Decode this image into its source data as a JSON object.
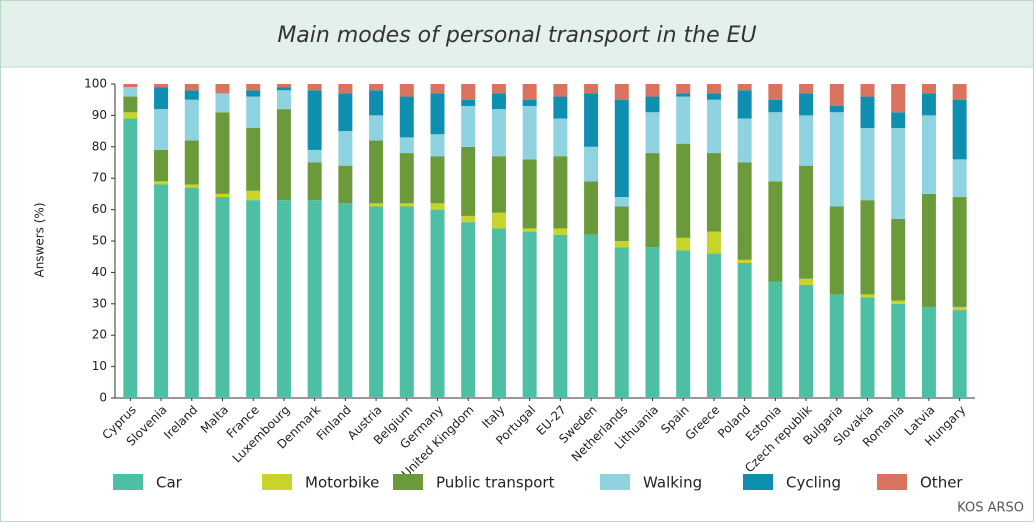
{
  "chart_data": {
    "type": "stacked_bar",
    "title": "Main modes of personal transport in the EU",
    "ylabel": "Answers (%)",
    "credit": "KOS ARSO",
    "categories": [
      "Cyprus",
      "Slovenia",
      "Ireland",
      "Malta",
      "France",
      "Luxembourg",
      "Denmark",
      "Finland",
      "Austria",
      "Belgium",
      "Germany",
      "United Kingdom",
      "Italy",
      "Portugal",
      "EU-27",
      "Sweden",
      "Netherlands",
      "Lithuania",
      "Spain",
      "Greece",
      "Poland",
      "Estonia",
      "Czech republik",
      "Bulgaria",
      "Slovakia",
      "Romania",
      "Latvia",
      "Hungary"
    ],
    "series": [
      {
        "name": "Car",
        "color": "#4dbfa4",
        "values": [
          89,
          68,
          67,
          64,
          63,
          63,
          63,
          62,
          61,
          61,
          60,
          56,
          54,
          53,
          52,
          52,
          48,
          48,
          47,
          46,
          43,
          37,
          36,
          33,
          32,
          30,
          29,
          28
        ]
      },
      {
        "name": "Motorbike",
        "color": "#c8d42a",
        "values": [
          2,
          1,
          1,
          1,
          3,
          0,
          0,
          0,
          1,
          1,
          2,
          2,
          5,
          1,
          2,
          0,
          2,
          0,
          4,
          7,
          1,
          0,
          2,
          0,
          1,
          1,
          0,
          1
        ]
      },
      {
        "name": "Public transport",
        "color": "#6a9a3a",
        "values": [
          5,
          10,
          14,
          26,
          20,
          29,
          12,
          12,
          20,
          16,
          15,
          22,
          18,
          22,
          23,
          17,
          11,
          30,
          30,
          25,
          31,
          32,
          36,
          28,
          30,
          26,
          36,
          35
        ]
      },
      {
        "name": "Walking",
        "color": "#8fd3e0",
        "values": [
          3,
          13,
          13,
          6,
          10,
          6,
          4,
          11,
          8,
          5,
          7,
          13,
          15,
          17,
          12,
          11,
          3,
          13,
          15,
          17,
          14,
          22,
          16,
          30,
          23,
          29,
          25,
          12
        ]
      },
      {
        "name": "Cycling",
        "color": "#0e8fb0",
        "values": [
          0,
          7,
          3,
          0,
          2,
          1,
          19,
          12,
          8,
          13,
          13,
          2,
          5,
          2,
          7,
          17,
          31,
          5,
          1,
          2,
          9,
          4,
          7,
          2,
          10,
          5,
          7,
          19
        ]
      },
      {
        "name": "Other",
        "color": "#d9735e",
        "values": [
          1,
          1,
          2,
          3,
          2,
          1,
          2,
          3,
          2,
          4,
          3,
          5,
          3,
          5,
          4,
          3,
          5,
          4,
          3,
          3,
          2,
          5,
          3,
          7,
          4,
          9,
          3,
          5
        ]
      }
    ],
    "ylim": [
      0,
      100
    ],
    "yticks": [
      0,
      10,
      20,
      30,
      40,
      50,
      60,
      70,
      80,
      90,
      100
    ]
  }
}
